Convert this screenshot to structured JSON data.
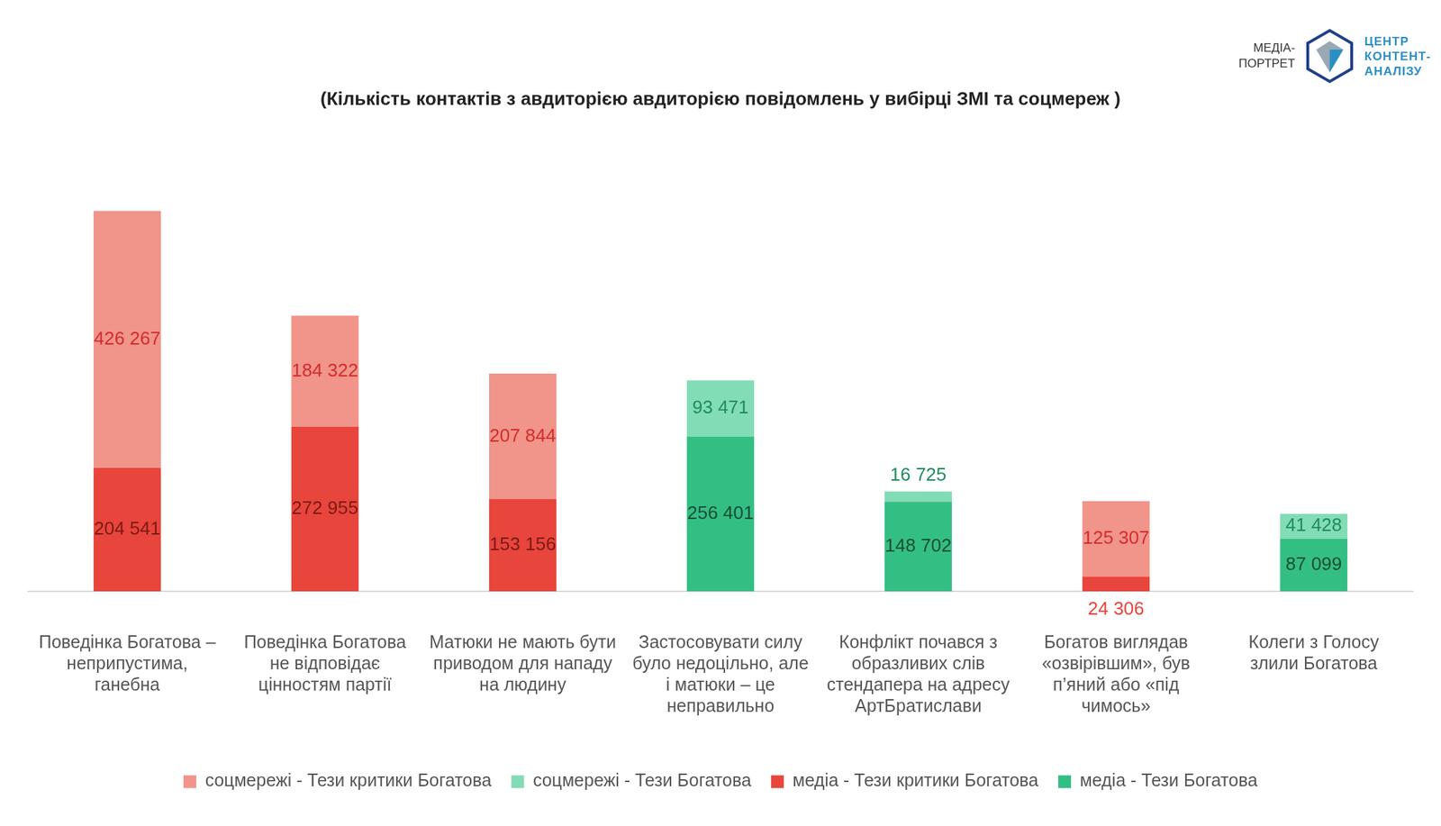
{
  "chart_data": {
    "type": "bar",
    "title": "(Кількість контактів з авдиторією авдиторією повідомлень у вибірці ЗМІ та соцмереж )",
    "annotations": [
      "МЕДІА-ПОРТРЕТ",
      "ЦЕНТР КОНТЕНТ-АНАЛІЗУ"
    ],
    "categories": [
      "Поведінка Богатова – неприпустима, ганебна",
      "Поведінка Богатова не відповідає цінностям партії",
      "Матюки не мають бути приводом для нападу на людину",
      "Застосовувати силу було недоцільно, але і матюки – це неправильно",
      "Конфлікт почався з образливих слів стендапера на адресу АртБратислави",
      "Богатов виглядав «озвірівшим», був п’яний або «під чимось»",
      "Колеги з Голосу злили Богатова"
    ],
    "series": [
      {
        "name": "соцмережі - Тези критики Богатова",
        "color": "#f1948a",
        "values": [
          426267,
          184322,
          207844,
          null,
          null,
          125307,
          null
        ],
        "value_labels": [
          "426 267",
          "184 322",
          "207 844",
          null,
          null,
          "125 307",
          null
        ]
      },
      {
        "name": "соцмережі - Тези Богатова",
        "color": "#82dcb5",
        "values": [
          null,
          null,
          null,
          93471,
          16725,
          null,
          41428
        ],
        "value_labels": [
          null,
          null,
          null,
          "93 471",
          "16 725",
          null,
          "41 428"
        ]
      },
      {
        "name": "медіа - Тези критики Богатова",
        "color": "#e8453c",
        "values": [
          204541,
          272955,
          153156,
          null,
          null,
          24306,
          null
        ],
        "value_labels": [
          "204 541",
          "272 955",
          "153 156",
          null,
          null,
          "24 306",
          null
        ]
      },
      {
        "name": "медіа - Тези Богатова",
        "color": "#33bf84",
        "values": [
          null,
          null,
          null,
          256401,
          148702,
          null,
          87099
        ],
        "value_labels": [
          null,
          null,
          null,
          "256 401",
          "148 702",
          null,
          "87 099"
        ]
      }
    ],
    "ylim": [
      0,
      750000
    ],
    "stacked": true,
    "data_labels": true,
    "tick_labels": "x",
    "grid": false,
    "legend": "bottom"
  }
}
